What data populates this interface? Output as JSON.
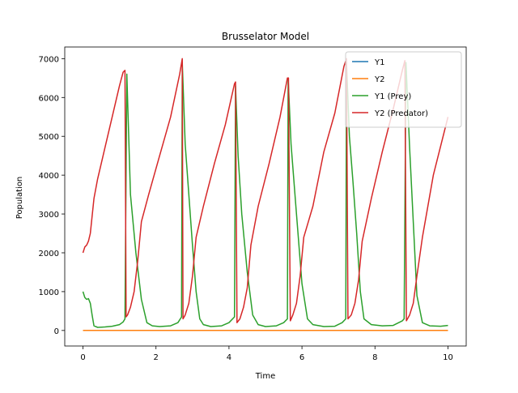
{
  "chart_data": {
    "type": "line",
    "title": "Brusselator Model",
    "xlabel": "Time",
    "ylabel": "Population",
    "xlim": [
      -0.5,
      10.5
    ],
    "ylim": [
      -400,
      7300
    ],
    "xticks": [
      0,
      2,
      4,
      6,
      8,
      10
    ],
    "yticks": [
      0,
      1000,
      2000,
      3000,
      4000,
      5000,
      6000,
      7000
    ],
    "grid": false,
    "legend_position": "top-right",
    "series": [
      {
        "name": "Y1",
        "color": "#1f77b4",
        "x": [
          0,
          10
        ],
        "y": [
          0,
          0
        ]
      },
      {
        "name": "Y2",
        "color": "#ff7f0e",
        "x": [
          0,
          10
        ],
        "y": [
          0,
          0
        ]
      },
      {
        "name": "Y1 (Prey)",
        "color": "#2ca02c",
        "x": [
          0,
          0.05,
          0.1,
          0.15,
          0.2,
          0.25,
          0.3,
          0.4,
          0.6,
          0.8,
          1.0,
          1.1,
          1.15,
          1.2,
          1.3,
          1.45,
          1.6,
          1.75,
          1.9,
          2.1,
          2.4,
          2.6,
          2.7,
          2.72,
          2.8,
          2.9,
          3.0,
          3.1,
          3.2,
          3.3,
          3.5,
          3.8,
          4.0,
          4.15,
          4.18,
          4.25,
          4.35,
          4.5,
          4.65,
          4.8,
          5.0,
          5.3,
          5.5,
          5.6,
          5.62,
          5.7,
          5.85,
          6.0,
          6.15,
          6.3,
          6.6,
          6.9,
          7.1,
          7.2,
          7.22,
          7.3,
          7.4,
          7.5,
          7.6,
          7.7,
          7.9,
          8.2,
          8.5,
          8.75,
          8.8,
          8.85,
          8.95,
          9.05,
          9.15,
          9.3,
          9.5,
          9.8,
          10.0
        ],
        "y": [
          1000,
          850,
          800,
          820,
          700,
          400,
          120,
          80,
          90,
          110,
          150,
          220,
          300,
          6600,
          3500,
          2000,
          800,
          200,
          120,
          100,
          120,
          200,
          350,
          6900,
          4800,
          3500,
          2200,
          1000,
          300,
          150,
          100,
          120,
          200,
          350,
          6300,
          4500,
          3000,
          1500,
          400,
          150,
          100,
          120,
          200,
          300,
          6500,
          4800,
          3000,
          1200,
          300,
          150,
          100,
          110,
          200,
          300,
          6900,
          5000,
          3800,
          2500,
          1000,
          300,
          150,
          120,
          130,
          250,
          300,
          6900,
          4700,
          2800,
          900,
          200,
          120,
          110,
          130
        ]
      },
      {
        "name": "Y2 (Predator)",
        "color": "#d62728",
        "x": [
          0,
          0.05,
          0.1,
          0.15,
          0.2,
          0.3,
          0.4,
          0.6,
          0.8,
          1.0,
          1.1,
          1.15,
          1.18,
          1.22,
          1.3,
          1.4,
          1.5,
          1.6,
          1.8,
          2.1,
          2.4,
          2.65,
          2.72,
          2.74,
          2.8,
          2.9,
          3.0,
          3.1,
          3.3,
          3.6,
          3.9,
          4.15,
          4.18,
          4.22,
          4.3,
          4.4,
          4.5,
          4.6,
          4.8,
          5.1,
          5.4,
          5.6,
          5.63,
          5.68,
          5.75,
          5.85,
          5.95,
          6.05,
          6.3,
          6.6,
          6.9,
          7.15,
          7.22,
          7.26,
          7.35,
          7.45,
          7.55,
          7.65,
          7.9,
          8.2,
          8.5,
          8.75,
          8.82,
          8.86,
          8.95,
          9.05,
          9.15,
          9.3,
          9.6,
          10.0
        ],
        "y": [
          2000,
          2150,
          2200,
          2300,
          2500,
          3400,
          3900,
          4700,
          5500,
          6300,
          6650,
          6700,
          350,
          400,
          600,
          1000,
          1800,
          2800,
          3500,
          4500,
          5500,
          6600,
          7000,
          300,
          400,
          700,
          1400,
          2400,
          3200,
          4300,
          5300,
          6350,
          6400,
          200,
          300,
          600,
          1100,
          2200,
          3200,
          4300,
          5500,
          6500,
          6500,
          250,
          400,
          700,
          1400,
          2400,
          3200,
          4600,
          5600,
          6800,
          7000,
          300,
          400,
          700,
          1300,
          2300,
          3400,
          4600,
          5700,
          6700,
          6950,
          250,
          400,
          700,
          1400,
          2400,
          4000,
          5500
        ]
      }
    ]
  }
}
